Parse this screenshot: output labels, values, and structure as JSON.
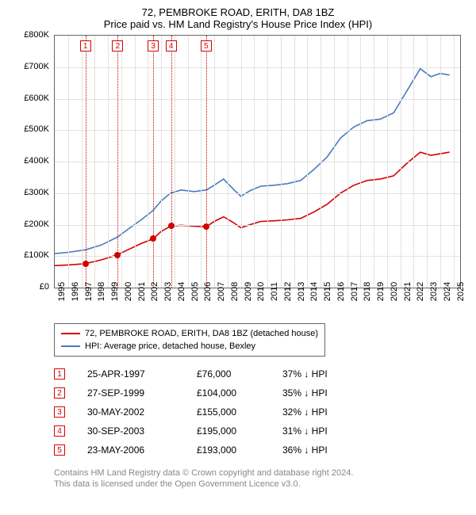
{
  "title": {
    "line1": "72, PEMBROKE ROAD, ERITH, DA8 1BZ",
    "line2": "Price paid vs. HM Land Registry's House Price Index (HPI)"
  },
  "chart": {
    "type": "line",
    "background_color": "#ffffff",
    "grid_color": "#e2e2e2",
    "axis_color": "#666666",
    "y": {
      "label_prefix": "£",
      "ticks": [
        0,
        100,
        200,
        300,
        400,
        500,
        600,
        700,
        800
      ],
      "tick_labels": [
        "£0",
        "£100K",
        "£200K",
        "£300K",
        "£400K",
        "£500K",
        "£600K",
        "£700K",
        "£800K"
      ],
      "min": 0,
      "max": 800
    },
    "x": {
      "min": 1995,
      "max": 2025.5,
      "tick_years": [
        1995,
        1996,
        1997,
        1998,
        1999,
        2000,
        2001,
        2002,
        2003,
        2004,
        2005,
        2006,
        2007,
        2008,
        2009,
        2010,
        2011,
        2012,
        2013,
        2014,
        2015,
        2016,
        2017,
        2018,
        2019,
        2020,
        2021,
        2022,
        2023,
        2024,
        2025
      ]
    },
    "series": [
      {
        "name": "property",
        "label": "72, PEMBROKE ROAD, ERITH, DA8 1BZ (detached house)",
        "color": "#d40000",
        "line_width": 1.8,
        "points": [
          [
            1995.0,
            70
          ],
          [
            1996.0,
            72
          ],
          [
            1997.3,
            76
          ],
          [
            1998.5,
            88
          ],
          [
            1999.7,
            104
          ],
          [
            2000.5,
            120
          ],
          [
            2001.5,
            140
          ],
          [
            2002.4,
            155
          ],
          [
            2003.0,
            178
          ],
          [
            2003.7,
            195
          ],
          [
            2004.5,
            198
          ],
          [
            2005.5,
            195
          ],
          [
            2006.4,
            193
          ],
          [
            2007.0,
            210
          ],
          [
            2007.7,
            225
          ],
          [
            2008.5,
            205
          ],
          [
            2009.0,
            190
          ],
          [
            2009.7,
            200
          ],
          [
            2010.5,
            210
          ],
          [
            2011.5,
            212
          ],
          [
            2012.5,
            215
          ],
          [
            2013.5,
            220
          ],
          [
            2014.5,
            240
          ],
          [
            2015.5,
            265
          ],
          [
            2016.5,
            300
          ],
          [
            2017.5,
            325
          ],
          [
            2018.5,
            340
          ],
          [
            2019.5,
            345
          ],
          [
            2020.5,
            355
          ],
          [
            2021.5,
            395
          ],
          [
            2022.5,
            430
          ],
          [
            2023.3,
            420
          ],
          [
            2024.0,
            425
          ],
          [
            2024.7,
            430
          ]
        ]
      },
      {
        "name": "hpi",
        "label": "HPI: Average price, detached house, Bexley",
        "color": "#4a7abf",
        "line_width": 1.5,
        "points": [
          [
            1995.0,
            108
          ],
          [
            1996.0,
            112
          ],
          [
            1997.3,
            120
          ],
          [
            1998.5,
            135
          ],
          [
            1999.7,
            160
          ],
          [
            2000.5,
            185
          ],
          [
            2001.5,
            215
          ],
          [
            2002.4,
            245
          ],
          [
            2003.0,
            275
          ],
          [
            2003.7,
            300
          ],
          [
            2004.5,
            310
          ],
          [
            2005.5,
            305
          ],
          [
            2006.4,
            310
          ],
          [
            2007.0,
            325
          ],
          [
            2007.7,
            345
          ],
          [
            2008.5,
            310
          ],
          [
            2009.0,
            290
          ],
          [
            2009.7,
            308
          ],
          [
            2010.5,
            322
          ],
          [
            2011.5,
            325
          ],
          [
            2012.5,
            330
          ],
          [
            2013.5,
            340
          ],
          [
            2014.5,
            375
          ],
          [
            2015.5,
            415
          ],
          [
            2016.5,
            475
          ],
          [
            2017.5,
            510
          ],
          [
            2018.5,
            530
          ],
          [
            2019.5,
            535
          ],
          [
            2020.5,
            555
          ],
          [
            2021.5,
            625
          ],
          [
            2022.5,
            695
          ],
          [
            2023.3,
            670
          ],
          [
            2024.0,
            680
          ],
          [
            2024.7,
            675
          ]
        ]
      }
    ],
    "markers": [
      {
        "n": "1",
        "year": 1997.31,
        "price": 76,
        "color": "#d40000"
      },
      {
        "n": "2",
        "year": 1999.74,
        "price": 104,
        "color": "#d40000"
      },
      {
        "n": "3",
        "year": 2002.41,
        "price": 155,
        "color": "#d40000"
      },
      {
        "n": "4",
        "year": 2003.75,
        "price": 195,
        "color": "#d40000"
      },
      {
        "n": "5",
        "year": 2006.39,
        "price": 193,
        "color": "#d40000"
      }
    ]
  },
  "legend": {
    "border_color": "#666666",
    "rows": [
      {
        "color": "#d40000",
        "label": "72, PEMBROKE ROAD, ERITH, DA8 1BZ (detached house)"
      },
      {
        "color": "#4a7abf",
        "label": "HPI: Average price, detached house, Bexley"
      }
    ]
  },
  "transactions": {
    "badge_color": "#d40000",
    "rows": [
      {
        "n": "1",
        "date": "25-APR-1997",
        "price": "£76,000",
        "pct": "37% ↓ HPI"
      },
      {
        "n": "2",
        "date": "27-SEP-1999",
        "price": "£104,000",
        "pct": "35% ↓ HPI"
      },
      {
        "n": "3",
        "date": "30-MAY-2002",
        "price": "£155,000",
        "pct": "32% ↓ HPI"
      },
      {
        "n": "4",
        "date": "30-SEP-2003",
        "price": "£195,000",
        "pct": "31% ↓ HPI"
      },
      {
        "n": "5",
        "date": "23-MAY-2006",
        "price": "£193,000",
        "pct": "36% ↓ HPI"
      }
    ]
  },
  "attribution": {
    "line1": "Contains HM Land Registry data © Crown copyright and database right 2024.",
    "line2": "This data is licensed under the Open Government Licence v3.0."
  }
}
